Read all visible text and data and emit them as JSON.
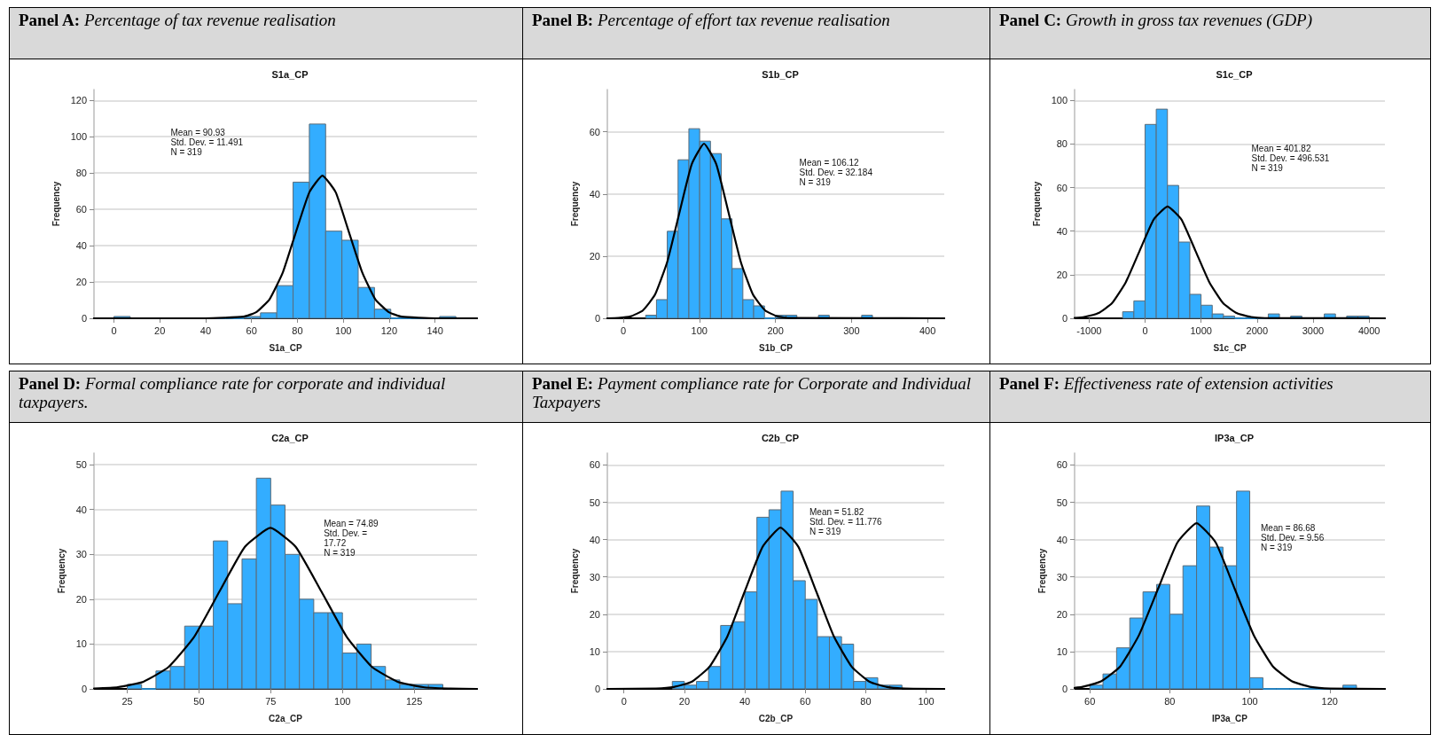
{
  "chart_data": [
    {
      "type": "histogram",
      "title": "Panel A: Percentage of tax revenue realisation",
      "subtitle": "S1a_CP",
      "xlabel": "S1a_CP",
      "ylabel": "Frequency",
      "annotations": [
        "Mean = 90.93",
        "Std. Dev. = 11.491",
        "N = 319"
      ],
      "xlim": [
        -8.7,
        158.3
      ],
      "xticks": [
        0,
        20,
        40,
        60,
        80,
        100,
        120,
        140
      ],
      "ylim": [
        0,
        126
      ],
      "yticks": [
        0,
        20,
        40,
        60,
        80,
        100,
        120
      ],
      "grid": "y",
      "series": [
        {
          "type": "histogram",
          "color": "#33adff",
          "bins": [
            0,
            7.1,
            14.2,
            21.3,
            28.4,
            35.5,
            42.6,
            49.7,
            56.8,
            63.9,
            71,
            78.1,
            85.2,
            92.3,
            99.4,
            106.5,
            113.6,
            120.7,
            127.8,
            134.9,
            142,
            149.1
          ],
          "values": [
            1,
            0,
            0,
            0,
            0,
            0,
            0,
            0,
            1,
            3,
            18,
            75,
            107,
            48,
            43,
            17,
            5,
            0,
            0,
            0,
            1
          ]
        },
        {
          "type": "line",
          "color": "#000000",
          "x": [
            -8.7,
            40,
            56.5,
            62.2,
            67.9,
            73.7,
            79.4,
            85.2,
            90.9,
            96.7,
            102.4,
            108.2,
            113.9,
            119.7,
            125.4,
            140,
            158.3
          ],
          "values": [
            0,
            0,
            0.9,
            3.5,
            10.6,
            25.5,
            47.7,
            69.4,
            78.6,
            69.4,
            47.7,
            25.5,
            10.6,
            3.5,
            0.9,
            0,
            0
          ]
        }
      ]
    },
    {
      "type": "histogram",
      "title": "Panel B: Percentage of effort tax revenue realisation",
      "subtitle": "S1b_CP",
      "xlabel": "S1b_CP",
      "ylabel": "Frequency",
      "annotations": [
        "Mean = 106.12",
        "Std. Dev. = 32.184",
        "N = 319"
      ],
      "xlim": [
        -21,
        422
      ],
      "xticks": [
        0,
        100,
        200,
        300,
        400
      ],
      "ylim": [
        0,
        73.6
      ],
      "yticks": [
        0,
        20,
        40,
        60
      ],
      "grid": "y",
      "series": [
        {
          "type": "histogram",
          "color": "#33adff",
          "bins": [
            29.4,
            43.6,
            57.8,
            72,
            86.2,
            100.4,
            114.6,
            128.8,
            143,
            157.2,
            171.4,
            185.6,
            199.8,
            214,
            228.2,
            242.4,
            256.6,
            270.8,
            285,
            299.2,
            313.4,
            327.6
          ],
          "values": [
            1,
            6,
            28,
            51,
            61,
            57,
            53,
            32,
            16,
            6,
            4,
            0,
            1,
            1,
            0,
            0,
            1,
            0,
            0,
            0,
            1
          ]
        },
        {
          "type": "line",
          "color": "#000000",
          "x": [
            -21,
            -6.6,
            9.5,
            25.6,
            41.7,
            57.8,
            73.9,
            90,
            106.1,
            122.2,
            138.3,
            154.4,
            170.5,
            186.6,
            202.7,
            218.8,
            422
          ],
          "values": [
            0,
            0.1,
            0.6,
            2.5,
            7.6,
            18.2,
            34.1,
            49.6,
            56.2,
            49.6,
            34.1,
            18.2,
            7.6,
            2.5,
            0.6,
            0.1,
            0
          ]
        }
      ]
    },
    {
      "type": "histogram",
      "title": "Panel C: Growth in gross tax revenues (GDP)",
      "subtitle": "S1c_CP",
      "xlabel": "S1c_CP",
      "ylabel": "Frequency",
      "annotations": [
        "Mean = 401.82",
        "Std. Dev. = 496.531",
        "N = 319"
      ],
      "xlim": [
        -1258,
        4283
      ],
      "xticks": [
        -1000,
        0,
        1000,
        2000,
        3000,
        4000
      ],
      "ylim": [
        0,
        105
      ],
      "yticks": [
        0,
        20,
        40,
        60,
        80,
        100
      ],
      "grid": "y",
      "series": [
        {
          "type": "histogram",
          "color": "#33adff",
          "bins": [
            -400,
            -200,
            0,
            200,
            400,
            600,
            800,
            1000,
            1200,
            1400,
            1600,
            1800,
            2000,
            2200,
            2400,
            2600,
            2800,
            3000,
            3200,
            3400,
            3600,
            3800,
            4000
          ],
          "values": [
            3,
            8,
            89,
            96,
            61,
            35,
            11,
            6,
            2,
            1,
            0,
            0,
            0,
            2,
            0,
            1,
            0,
            0,
            2,
            0,
            1,
            1
          ]
        },
        {
          "type": "line",
          "color": "#000000",
          "x": [
            -1258,
            -1088,
            -839,
            -591,
            -343,
            -95,
            154,
            402,
            650,
            898,
            1147,
            1395,
            1643,
            1891,
            2140,
            4283
          ],
          "values": [
            0.2,
            0.6,
            2.3,
            6.9,
            16.6,
            31.1,
            45.3,
            51.3,
            45.3,
            31.1,
            16.6,
            6.9,
            2.3,
            0.6,
            0.1,
            0
          ]
        }
      ]
    },
    {
      "type": "histogram",
      "title": "Panel D: Formal compliance rate for corporate and individual taxpayers.",
      "subtitle": "C2a_CP",
      "xlabel": "C2a_CP",
      "ylabel": "Frequency",
      "annotations": [
        "Mean = 74.89",
        "Std. Dev. =",
        "17.72",
        "N = 319"
      ],
      "xlim": [
        13.4,
        146.9
      ],
      "xticks": [
        25,
        50,
        75,
        100,
        125
      ],
      "ylim": [
        0,
        52.6
      ],
      "yticks": [
        0,
        10,
        20,
        30,
        40,
        50
      ],
      "grid": "y",
      "series": [
        {
          "type": "histogram",
          "color": "#33adff",
          "bins": [
            25,
            30,
            35,
            40,
            45,
            50,
            55,
            60,
            65,
            70,
            75,
            80,
            85,
            90,
            95,
            100,
            105,
            110,
            115,
            120,
            125,
            130,
            135
          ],
          "values": [
            1,
            0,
            4,
            5,
            14,
            14,
            33,
            19,
            29,
            47,
            41,
            30,
            20,
            17,
            17,
            8,
            10,
            5,
            2,
            1,
            1,
            1
          ]
        },
        {
          "type": "line",
          "color": "#000000",
          "x": [
            13.4,
            21.7,
            30.6,
            39.4,
            48.3,
            57.2,
            66,
            74.9,
            83.7,
            92.6,
            101.5,
            110.3,
            119.2,
            128.1,
            136.9,
            146.9
          ],
          "values": [
            0.1,
            0.4,
            1.6,
            4.9,
            11.6,
            21.8,
            31.7,
            35.9,
            31.7,
            21.8,
            11.6,
            4.9,
            1.6,
            0.4,
            0.1,
            0
          ]
        }
      ]
    },
    {
      "type": "histogram",
      "title": "Panel E: Payment compliance rate for Corporate and Individual Taxpayers",
      "subtitle": "C2b_CP",
      "xlabel": "C2b_CP",
      "ylabel": "Frequency",
      "annotations": [
        "Mean = 51.82",
        "Std. Dev. = 11.776",
        "N = 319"
      ],
      "xlim": [
        -5.5,
        106
      ],
      "xticks": [
        0,
        20,
        40,
        60,
        80,
        100
      ],
      "ylim": [
        0,
        63.2
      ],
      "yticks": [
        0,
        10,
        20,
        30,
        40,
        50,
        60
      ],
      "grid": "y",
      "series": [
        {
          "type": "histogram",
          "color": "#33adff",
          "bins": [
            16,
            20,
            24,
            28,
            32,
            36,
            40,
            44,
            48,
            52,
            56,
            60,
            64,
            68,
            72,
            76,
            80,
            84,
            88,
            92
          ],
          "values": [
            2,
            1,
            2,
            6,
            17,
            18,
            26,
            46,
            48,
            53,
            29,
            24,
            14,
            14,
            12,
            2,
            3,
            1,
            1
          ]
        },
        {
          "type": "line",
          "color": "#000000",
          "x": [
            -5.5,
            10.6,
            16.5,
            22.4,
            28.3,
            34.2,
            40,
            45.9,
            51.8,
            57.7,
            63.6,
            69.5,
            75.4,
            81.3,
            87.1,
            93,
            106
          ],
          "values": [
            0,
            0.1,
            0.5,
            1.9,
            5.9,
            14,
            26.2,
            38.1,
            43.2,
            38.1,
            26.2,
            14,
            5.9,
            1.9,
            0.5,
            0.1,
            0
          ]
        }
      ]
    },
    {
      "type": "histogram",
      "title": "Panel F: Effectiveness rate of extension activities",
      "subtitle": "IP3a_CP",
      "xlabel": "IP3a_CP",
      "ylabel": "Frequency",
      "annotations": [
        "Mean = 86.68",
        "Std. Dev. = 9.56",
        "N = 319"
      ],
      "xlim": [
        56.2,
        133.8
      ],
      "xticks": [
        60,
        80,
        100,
        120
      ],
      "ylim": [
        0,
        63.2
      ],
      "yticks": [
        0,
        10,
        20,
        30,
        40,
        50,
        60
      ],
      "grid": "y",
      "series": [
        {
          "type": "histogram",
          "color": "#33adff",
          "bins": [
            60,
            63.3,
            66.7,
            70,
            73.3,
            76.7,
            80,
            83.3,
            86.7,
            90,
            93.3,
            96.7,
            100,
            103.3,
            106.7,
            110,
            113.3,
            116.7,
            120,
            123.3,
            126.7
          ],
          "values": [
            1,
            4,
            11,
            19,
            26,
            28,
            20,
            33,
            49,
            38,
            33,
            53,
            3,
            0,
            0,
            0,
            0,
            0,
            0,
            1
          ]
        },
        {
          "type": "line",
          "color": "#000000",
          "x": [
            56.2,
            58,
            62.8,
            67.6,
            72.3,
            77.1,
            81.9,
            86.7,
            91.5,
            96.2,
            101,
            105.8,
            110.6,
            115.4,
            120.1,
            133.8
          ],
          "values": [
            0.3,
            0.5,
            2,
            6,
            14.4,
            26.9,
            39.2,
            44.4,
            39.2,
            26.9,
            14.4,
            6,
            2,
            0.5,
            0.1,
            0
          ]
        }
      ]
    }
  ]
}
